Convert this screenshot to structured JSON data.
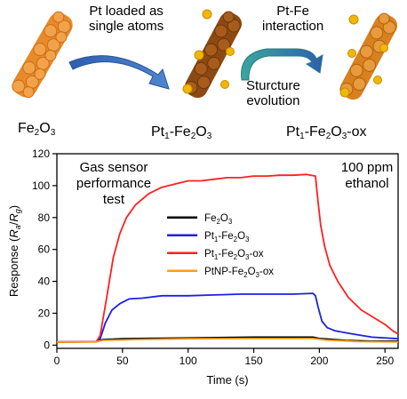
{
  "scheme": {
    "step1_label": [
      "Pt loaded as",
      "single atoms"
    ],
    "step2_top_label": [
      "Pt-Fe",
      "interaction"
    ],
    "step2_bottom_label": [
      "Sturcture",
      "evolution"
    ],
    "materials": [
      {
        "base": "Fe",
        "s1": "2",
        "mid": "O",
        "s2": "3",
        "tail": ""
      },
      {
        "base": "Pt",
        "s1": "1",
        "mid": "-Fe",
        "s2": "2",
        "mid2": "O",
        "s3": "3",
        "tail": ""
      },
      {
        "base": "Pt",
        "s1": "1",
        "mid": "-Fe",
        "s2": "2",
        "mid2": "O",
        "s3": "3",
        "tail": "-ox"
      }
    ],
    "colors": {
      "rod1": "#e8892a",
      "rod2": "#8c4a12",
      "rod3": "#d9801f",
      "atom": "#f2b705",
      "arrow": "#3a6db3"
    }
  },
  "chart_data": {
    "type": "line",
    "xlabel": "Time (s)",
    "ylabel_parts": [
      "Response (",
      "R",
      "a",
      "/",
      "R",
      "g",
      ")"
    ],
    "xlim": [
      0,
      260
    ],
    "ylim": [
      -2,
      120
    ],
    "xticks": [
      0,
      50,
      100,
      150,
      200,
      250
    ],
    "yticks": [
      0,
      20,
      40,
      60,
      80,
      100,
      120
    ],
    "annotations": {
      "left": [
        "Gas sensor",
        "performance",
        "test"
      ],
      "right": [
        "100 ppm",
        "ethanol"
      ]
    },
    "series": [
      {
        "name_parts": [
          [
            "Fe",
            ""
          ],
          [
            "2",
            "sub"
          ],
          [
            "O",
            ""
          ],
          [
            "3",
            "sub"
          ]
        ],
        "color": "#000000",
        "points": [
          [
            0,
            2
          ],
          [
            30,
            2.1
          ],
          [
            35,
            3.5
          ],
          [
            50,
            4
          ],
          [
            100,
            4.5
          ],
          [
            150,
            5
          ],
          [
            195,
            5
          ],
          [
            200,
            4.2
          ],
          [
            220,
            3
          ],
          [
            240,
            2.5
          ],
          [
            260,
            2.5
          ]
        ]
      },
      {
        "name_parts": [
          [
            "Pt",
            ""
          ],
          [
            "1",
            "sub"
          ],
          [
            "-Fe",
            ""
          ],
          [
            "2",
            "sub"
          ],
          [
            "O",
            ""
          ],
          [
            "3",
            "sub"
          ]
        ],
        "color": "#1f1fe0",
        "points": [
          [
            0,
            2
          ],
          [
            30,
            2.2
          ],
          [
            33,
            4
          ],
          [
            37,
            14
          ],
          [
            42,
            22
          ],
          [
            48,
            26
          ],
          [
            55,
            29
          ],
          [
            65,
            29.5
          ],
          [
            80,
            31
          ],
          [
            100,
            31
          ],
          [
            120,
            31.5
          ],
          [
            140,
            32
          ],
          [
            160,
            32
          ],
          [
            180,
            32
          ],
          [
            195,
            32.5
          ],
          [
            197,
            31
          ],
          [
            199,
            24
          ],
          [
            202,
            15
          ],
          [
            206,
            11
          ],
          [
            212,
            9
          ],
          [
            225,
            7
          ],
          [
            240,
            5
          ],
          [
            260,
            4
          ]
        ]
      },
      {
        "name_parts": [
          [
            "Pt",
            ""
          ],
          [
            "1",
            "sub"
          ],
          [
            "-Fe",
            ""
          ],
          [
            "2",
            "sub"
          ],
          [
            "O",
            ""
          ],
          [
            "3",
            "sub"
          ],
          [
            "-ox",
            ""
          ]
        ],
        "color": "#ff2020",
        "points": [
          [
            0,
            2
          ],
          [
            30,
            2.2
          ],
          [
            33,
            6
          ],
          [
            38,
            30
          ],
          [
            43,
            55
          ],
          [
            48,
            70
          ],
          [
            53,
            80
          ],
          [
            60,
            88
          ],
          [
            70,
            95
          ],
          [
            80,
            99
          ],
          [
            90,
            101
          ],
          [
            100,
            103
          ],
          [
            110,
            103
          ],
          [
            120,
            104
          ],
          [
            130,
            105
          ],
          [
            140,
            105
          ],
          [
            150,
            106
          ],
          [
            160,
            106
          ],
          [
            170,
            106.5
          ],
          [
            180,
            106.5
          ],
          [
            190,
            107
          ],
          [
            197,
            106
          ],
          [
            199,
            90
          ],
          [
            201,
            75
          ],
          [
            204,
            62
          ],
          [
            208,
            50
          ],
          [
            214,
            40
          ],
          [
            222,
            30
          ],
          [
            232,
            22
          ],
          [
            242,
            17
          ],
          [
            250,
            13
          ],
          [
            256,
            9
          ],
          [
            260,
            7
          ]
        ]
      },
      {
        "name_parts": [
          [
            "PtNP-Fe",
            ""
          ],
          [
            "2",
            "sub"
          ],
          [
            "O",
            ""
          ],
          [
            "3",
            "sub"
          ],
          [
            "-ox",
            ""
          ]
        ],
        "color": "#ff9c1a",
        "points": [
          [
            0,
            2
          ],
          [
            30,
            2
          ],
          [
            35,
            3
          ],
          [
            60,
            3.5
          ],
          [
            100,
            4
          ],
          [
            150,
            4.2
          ],
          [
            195,
            4.2
          ],
          [
            205,
            3.2
          ],
          [
            230,
            2.3
          ],
          [
            260,
            2
          ]
        ]
      }
    ]
  }
}
